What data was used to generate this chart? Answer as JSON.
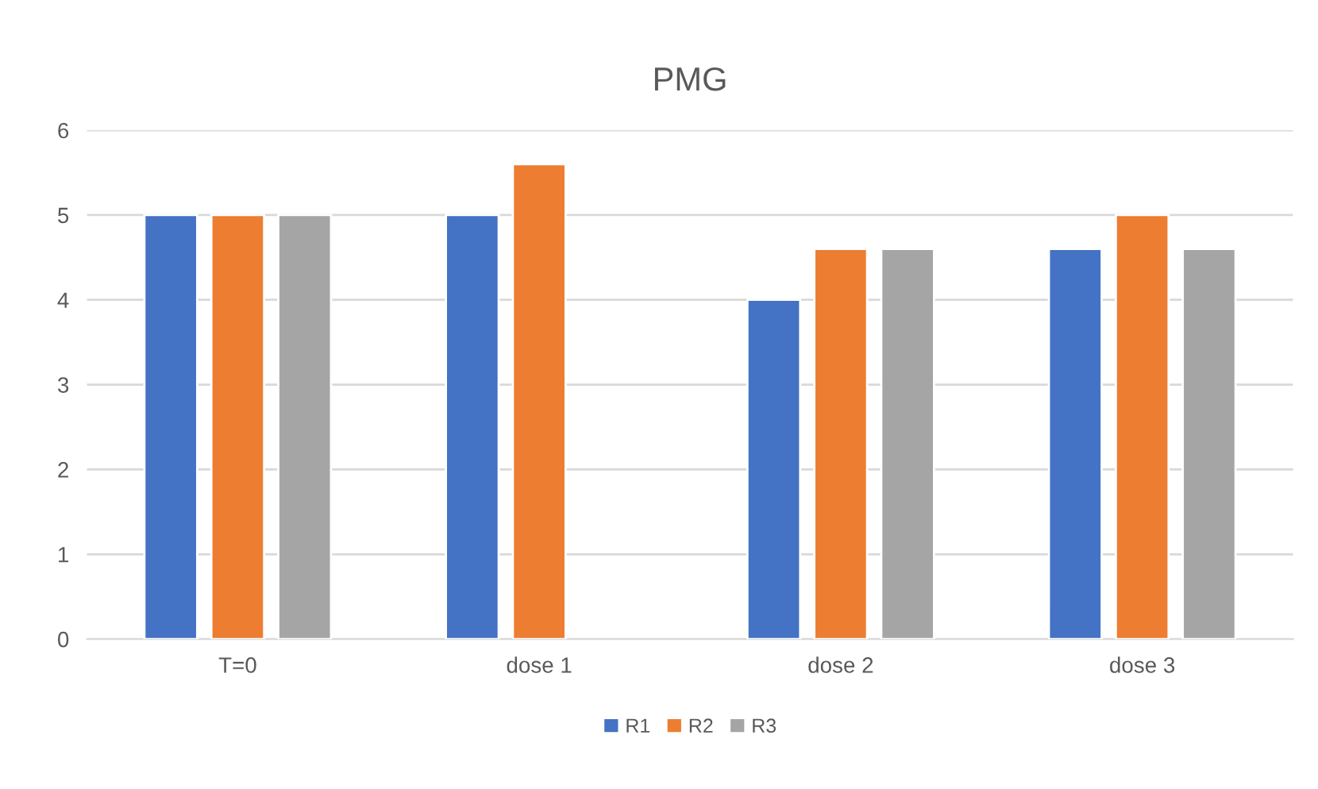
{
  "chart_data": {
    "type": "bar",
    "title": "PMG",
    "categories": [
      "T=0",
      "dose 1",
      "dose 2",
      "dose 3"
    ],
    "series": [
      {
        "name": "R1",
        "color": "#4472c4",
        "values": [
          5,
          5,
          4,
          4.6
        ]
      },
      {
        "name": "R2",
        "color": "#ed7d31",
        "values": [
          5,
          5.6,
          4.6,
          5
        ]
      },
      {
        "name": "R3",
        "color": "#a5a5a5",
        "values": [
          5,
          null,
          4.6,
          4.6
        ]
      }
    ],
    "ylim": [
      0,
      6
    ],
    "yticks": [
      0,
      1,
      2,
      3,
      4,
      5,
      6
    ],
    "grid": "y",
    "legend": "bottom"
  }
}
